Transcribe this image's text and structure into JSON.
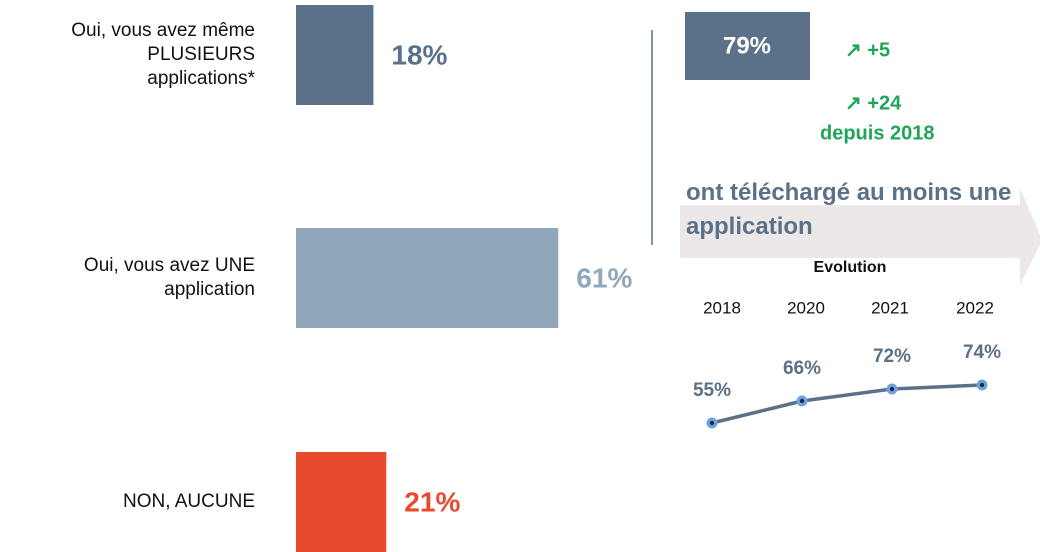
{
  "chart_data": [
    {
      "type": "hbar",
      "categories": [
        "Oui, vous avez même PLUSIEURS applications*",
        "Oui, vous avez UNE application",
        "NON, AUCUNE"
      ],
      "values": [
        18,
        61,
        21
      ],
      "value_labels": [
        "18%",
        "61%",
        "21%"
      ],
      "colors": [
        "#5a7189",
        "#91a7ba",
        "#e84a2f"
      ]
    },
    {
      "type": "line",
      "title": "Evolution",
      "x": [
        "2018",
        "2020",
        "2021",
        "2022"
      ],
      "values": [
        55,
        66,
        72,
        74
      ],
      "value_labels": [
        "55%",
        "66%",
        "72%",
        "74%"
      ],
      "color": "#5a7189",
      "marker_color": "#6fa3e0"
    }
  ],
  "summary": {
    "value": 79,
    "value_label": "79%",
    "text": "ont téléchargé au moins une application",
    "changes": [
      {
        "label": "↗ +5"
      },
      {
        "label": "↗ +24",
        "note": "depuis 2018"
      }
    ]
  }
}
